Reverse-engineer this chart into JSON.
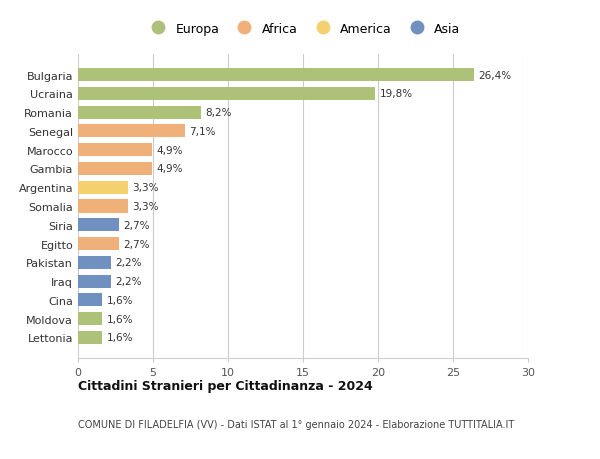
{
  "countries": [
    "Bulgaria",
    "Ucraina",
    "Romania",
    "Senegal",
    "Marocco",
    "Gambia",
    "Argentina",
    "Somalia",
    "Siria",
    "Egitto",
    "Pakistan",
    "Iraq",
    "Cina",
    "Moldova",
    "Lettonia"
  ],
  "values": [
    26.4,
    19.8,
    8.2,
    7.1,
    4.9,
    4.9,
    3.3,
    3.3,
    2.7,
    2.7,
    2.2,
    2.2,
    1.6,
    1.6,
    1.6
  ],
  "labels": [
    "26,4%",
    "19,8%",
    "8,2%",
    "7,1%",
    "4,9%",
    "4,9%",
    "3,3%",
    "3,3%",
    "2,7%",
    "2,7%",
    "2,2%",
    "2,2%",
    "1,6%",
    "1,6%",
    "1,6%"
  ],
  "continents": [
    "Europa",
    "Europa",
    "Europa",
    "Africa",
    "Africa",
    "Africa",
    "America",
    "Africa",
    "Asia",
    "Africa",
    "Asia",
    "Asia",
    "Asia",
    "Europa",
    "Europa"
  ],
  "colors": {
    "Europa": "#adc178",
    "Africa": "#f0b07a",
    "America": "#f5d06e",
    "Asia": "#7090c0"
  },
  "legend_order": [
    "Europa",
    "Africa",
    "America",
    "Asia"
  ],
  "title": "Cittadini Stranieri per Cittadinanza - 2024",
  "subtitle": "COMUNE DI FILADELFIA (VV) - Dati ISTAT al 1° gennaio 2024 - Elaborazione TUTTITALIA.IT",
  "xlim": [
    0,
    30
  ],
  "xticks": [
    0,
    5,
    10,
    15,
    20,
    25,
    30
  ],
  "background_color": "#ffffff",
  "grid_color": "#cccccc",
  "bar_height": 0.7
}
